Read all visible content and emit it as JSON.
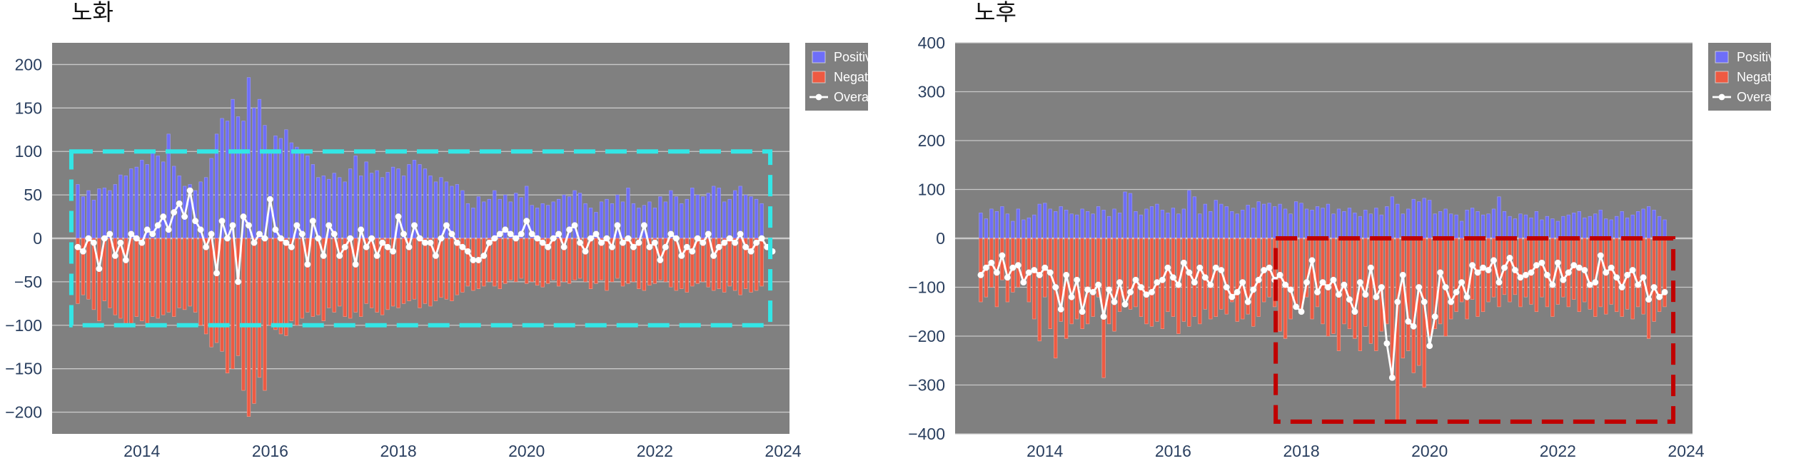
{
  "colors": {
    "plot_bg": "#808080",
    "grid": "#c8c8c8",
    "positive": "#6e6ef8",
    "negative": "#ee5a42",
    "overall": "#ffffff",
    "left_box": "#33e6e6",
    "right_box": "#c00000"
  },
  "chart_data": [
    {
      "type": "bar",
      "title": "노화",
      "xlabel": "",
      "ylabel": "",
      "x_start": "2013-01",
      "ylim": [
        -225,
        225
      ],
      "xlim": [
        2012.6,
        2024.1
      ],
      "xticks": [
        2014,
        2016,
        2018,
        2020,
        2022,
        2024
      ],
      "yticks": [
        -200,
        -150,
        -100,
        -50,
        0,
        50,
        100,
        150,
        200
      ],
      "legend": [
        "Positive",
        "Negative",
        "Overall"
      ],
      "legend_placement": "outside-top-right",
      "highlight": {
        "style": "dashed",
        "color": "cyan",
        "x_range": [
          2012.9,
          2023.8
        ],
        "y_range": [
          -100,
          100
        ]
      },
      "series": [
        {
          "name": "Positive",
          "values": [
            62,
            48,
            55,
            44,
            57,
            58,
            55,
            62,
            73,
            72,
            80,
            82,
            90,
            85,
            100,
            95,
            88,
            120,
            83,
            72,
            60,
            62,
            55,
            65,
            70,
            92,
            120,
            138,
            135,
            160,
            140,
            135,
            185,
            150,
            160,
            130,
            100,
            118,
            115,
            125,
            110,
            105,
            100,
            95,
            85,
            70,
            72,
            68,
            75,
            70,
            65,
            80,
            95,
            72,
            88,
            75,
            78,
            70,
            76,
            82,
            80,
            72,
            85,
            90,
            85,
            80,
            72,
            65,
            70,
            65,
            60,
            62,
            55,
            40,
            35,
            48,
            42,
            45,
            55,
            45,
            50,
            42,
            52,
            47,
            60,
            38,
            35,
            40,
            38,
            42,
            45,
            50,
            48,
            55,
            52,
            40,
            35,
            30,
            42,
            45,
            40,
            50,
            42,
            58,
            40,
            35,
            38,
            42,
            35,
            48,
            42,
            55,
            48,
            40,
            45,
            58,
            50,
            48,
            52,
            60,
            58,
            42,
            45,
            55,
            60,
            50,
            48,
            45,
            40
          ]
        },
        {
          "name": "Negative",
          "values": [
            -75,
            -65,
            -70,
            -82,
            -95,
            -72,
            -80,
            -88,
            -92,
            -98,
            -102,
            -90,
            -95,
            -100,
            -90,
            -92,
            -88,
            -85,
            -90,
            -80,
            -82,
            -78,
            -85,
            -100,
            -110,
            -125,
            -120,
            -130,
            -155,
            -150,
            -135,
            -175,
            -205,
            -190,
            -160,
            -175,
            -100,
            -105,
            -110,
            -112,
            -95,
            -100,
            -92,
            -85,
            -90,
            -88,
            -95,
            -80,
            -85,
            -78,
            -90,
            -92,
            -85,
            -90,
            -75,
            -80,
            -85,
            -88,
            -82,
            -78,
            -80,
            -75,
            -72,
            -70,
            -80,
            -75,
            -78,
            -72,
            -68,
            -70,
            -72,
            -65,
            -62,
            -55,
            -60,
            -58,
            -55,
            -50,
            -55,
            -58,
            -52,
            -48,
            -50,
            -46,
            -52,
            -50,
            -54,
            -56,
            -52,
            -48,
            -55,
            -50,
            -52,
            -48,
            -46,
            -50,
            -58,
            -52,
            -48,
            -60,
            -50,
            -46,
            -55,
            -52,
            -50,
            -58,
            -60,
            -54,
            -52,
            -48,
            -50,
            -56,
            -60,
            -58,
            -62,
            -55,
            -52,
            -50,
            -56,
            -60,
            -58,
            -62,
            -55,
            -60,
            -65,
            -58,
            -62,
            -60,
            -55
          ]
        },
        {
          "name": "Overall",
          "values": [
            -10,
            -15,
            0,
            -5,
            -35,
            0,
            5,
            -20,
            -5,
            -25,
            5,
            0,
            -5,
            10,
            5,
            15,
            25,
            10,
            30,
            40,
            25,
            55,
            20,
            10,
            -10,
            5,
            -40,
            20,
            0,
            15,
            -50,
            25,
            15,
            -5,
            5,
            0,
            45,
            10,
            0,
            -5,
            -10,
            15,
            5,
            -30,
            20,
            0,
            -20,
            15,
            5,
            -20,
            -10,
            0,
            -30,
            10,
            -10,
            0,
            -20,
            -5,
            -10,
            -15,
            25,
            5,
            -10,
            15,
            0,
            -5,
            -5,
            -20,
            0,
            15,
            5,
            -5,
            -10,
            -15,
            -25,
            -25,
            -20,
            -5,
            0,
            5,
            10,
            5,
            0,
            5,
            20,
            5,
            0,
            -5,
            -10,
            0,
            5,
            -10,
            10,
            15,
            -5,
            -15,
            0,
            5,
            -5,
            0,
            -10,
            15,
            -5,
            0,
            -10,
            -5,
            15,
            -10,
            -5,
            -25,
            -10,
            5,
            0,
            -20,
            -10,
            -15,
            0,
            -5,
            5,
            -20,
            -10,
            -5,
            0,
            -5,
            5,
            -10,
            -15,
            -5,
            0,
            -10,
            -15
          ]
        }
      ]
    },
    {
      "type": "bar",
      "title": "노후",
      "xlabel": "",
      "ylabel": "",
      "x_start": "2013-01",
      "ylim": [
        -400,
        400
      ],
      "xlim": [
        2012.6,
        2024.1
      ],
      "xticks": [
        2014,
        2016,
        2018,
        2020,
        2022,
        2024
      ],
      "yticks": [
        -400,
        -300,
        -200,
        -100,
        0,
        100,
        200,
        300,
        400
      ],
      "legend": [
        "Positive",
        "Negative",
        "Overall"
      ],
      "legend_placement": "outside-top-right",
      "highlight": {
        "style": "dashed",
        "color": "darkred",
        "x_range": [
          2017.6,
          2023.8
        ],
        "y_range": [
          -375,
          0
        ]
      },
      "series": [
        {
          "name": "Positive",
          "values": [
            52,
            40,
            60,
            55,
            65,
            50,
            35,
            60,
            38,
            42,
            48,
            70,
            72,
            60,
            55,
            65,
            58,
            50,
            48,
            60,
            55,
            50,
            65,
            58,
            45,
            60,
            52,
            95,
            92,
            55,
            48,
            60,
            65,
            70,
            58,
            52,
            62,
            50,
            60,
            98,
            85,
            50,
            70,
            55,
            78,
            70,
            65,
            55,
            50,
            58,
            68,
            62,
            75,
            70,
            72,
            65,
            70,
            60,
            50,
            75,
            72,
            60,
            58,
            65,
            62,
            70,
            50,
            60,
            55,
            62,
            52,
            45,
            58,
            50,
            62,
            48,
            65,
            85,
            70,
            50,
            60,
            80,
            75,
            82,
            78,
            50,
            55,
            60,
            50,
            48,
            35,
            58,
            62,
            55,
            48,
            50,
            60,
            85,
            55,
            45,
            40,
            50,
            48,
            42,
            55,
            38,
            45,
            40,
            35,
            45,
            48,
            52,
            55,
            42,
            45,
            50,
            58,
            40,
            38,
            45,
            55,
            42,
            48,
            55,
            60,
            65,
            58,
            45,
            38
          ]
        },
        {
          "name": "Negative",
          "values": [
            -130,
            -120,
            -100,
            -140,
            -85,
            -130,
            -110,
            -100,
            -95,
            -130,
            -165,
            -210,
            -120,
            -185,
            -245,
            -170,
            -205,
            -175,
            -165,
            -185,
            -175,
            -160,
            -120,
            -285,
            -175,
            -190,
            -150,
            -125,
            -145,
            -140,
            -160,
            -175,
            -180,
            -170,
            -185,
            -150,
            -160,
            -195,
            -170,
            -180,
            -160,
            -175,
            -145,
            -165,
            -160,
            -145,
            -155,
            -130,
            -170,
            -165,
            -155,
            -180,
            -160,
            -130,
            -120,
            -140,
            -190,
            -205,
            -165,
            -140,
            -150,
            -120,
            -165,
            -140,
            -175,
            -200,
            -195,
            -230,
            -175,
            -185,
            -205,
            -230,
            -180,
            -215,
            -230,
            -190,
            -175,
            -280,
            -375,
            -245,
            -230,
            -275,
            -260,
            -305,
            -200,
            -185,
            -175,
            -200,
            -165,
            -150,
            -130,
            -165,
            -125,
            -160,
            -150,
            -130,
            -120,
            -140,
            -115,
            -130,
            -115,
            -140,
            -120,
            -135,
            -150,
            -120,
            -140,
            -160,
            -135,
            -120,
            -140,
            -125,
            -150,
            -130,
            -145,
            -160,
            -140,
            -155,
            -135,
            -150,
            -160,
            -145,
            -165,
            -140,
            -155,
            -205,
            -170,
            -150,
            -140
          ]
        },
        {
          "name": "Overall",
          "values": [
            -75,
            -60,
            -50,
            -70,
            -35,
            -80,
            -60,
            -55,
            -90,
            -70,
            -65,
            -75,
            -60,
            -70,
            -100,
            -145,
            -75,
            -120,
            -85,
            -150,
            -105,
            -110,
            -95,
            -160,
            -105,
            -130,
            -90,
            -135,
            -110,
            -85,
            -100,
            -115,
            -110,
            -90,
            -85,
            -60,
            -80,
            -95,
            -50,
            -70,
            -90,
            -60,
            -80,
            -95,
            -60,
            -65,
            -100,
            -120,
            -110,
            -90,
            -130,
            -105,
            -85,
            -65,
            -60,
            -85,
            -75,
            -95,
            -105,
            -140,
            -150,
            -90,
            -45,
            -110,
            -90,
            -100,
            -85,
            -115,
            -95,
            -125,
            -150,
            -90,
            -115,
            -60,
            -120,
            -100,
            -215,
            -285,
            -130,
            -75,
            -170,
            -180,
            -100,
            -130,
            -220,
            -160,
            -70,
            -100,
            -130,
            -110,
            -90,
            -120,
            -55,
            -70,
            -60,
            -65,
            -45,
            -90,
            -60,
            -40,
            -65,
            -80,
            -75,
            -70,
            -55,
            -50,
            -75,
            -95,
            -50,
            -85,
            -70,
            -55,
            -60,
            -65,
            -95,
            -90,
            -35,
            -70,
            -60,
            -80,
            -100,
            -75,
            -65,
            -95,
            -80,
            -125,
            -100,
            -120,
            -110
          ]
        }
      ]
    }
  ]
}
